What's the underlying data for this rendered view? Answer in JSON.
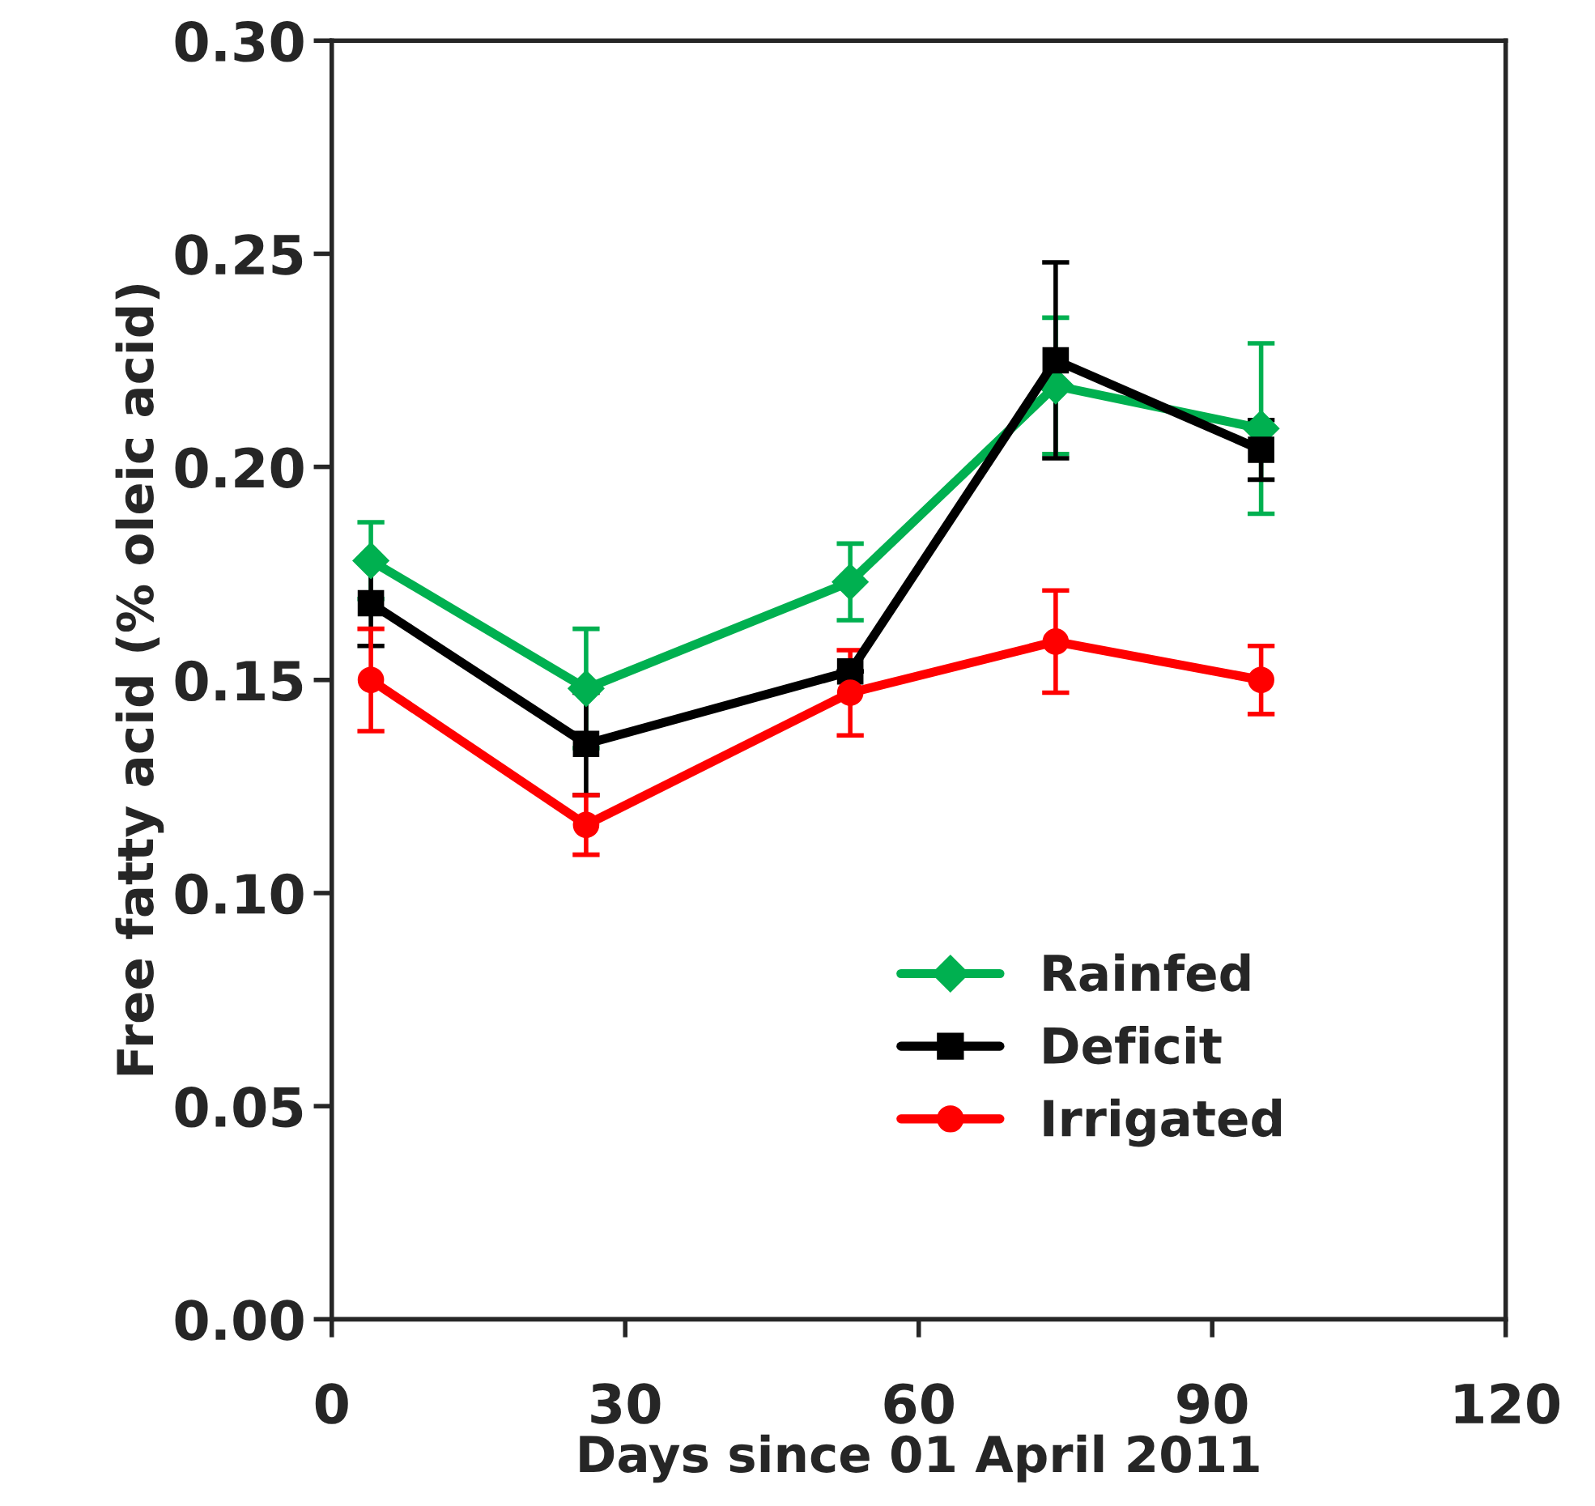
{
  "chart_data": {
    "type": "line",
    "xlabel": "Days since 01 April 2011",
    "ylabel": "Free fatty acid (% oleic acid)",
    "x": [
      4,
      26,
      53,
      74,
      95
    ],
    "series": [
      {
        "name": "Rainfed",
        "color": "#00b050",
        "marker": "diamond",
        "values": [
          0.178,
          0.148,
          0.173,
          0.219,
          0.209
        ],
        "errors": [
          0.009,
          0.014,
          0.009,
          0.016,
          0.02
        ]
      },
      {
        "name": "Deficit",
        "color": "#000000",
        "marker": "square",
        "values": [
          0.168,
          0.135,
          0.152,
          0.225,
          0.204
        ],
        "errors": [
          0.01,
          0.012,
          null,
          0.023,
          0.007
        ]
      },
      {
        "name": "Irrigated",
        "color": "#ff0000",
        "marker": "circle",
        "values": [
          0.15,
          0.116,
          0.147,
          0.159,
          0.15
        ],
        "errors": [
          0.012,
          0.007,
          0.01,
          0.012,
          0.008
        ]
      }
    ],
    "xlim": [
      0,
      120
    ],
    "xticks": [
      0,
      30,
      60,
      90,
      120
    ],
    "ylim": [
      0,
      0.3
    ],
    "yticks": [
      {
        "value": 0,
        "label": "0.00"
      },
      {
        "value": 0.05,
        "label": "0.05"
      },
      {
        "value": 0.1,
        "label": "0.10"
      },
      {
        "value": 0.15,
        "label": "0.15"
      },
      {
        "value": 0.2,
        "label": "0.20"
      },
      {
        "value": 0.25,
        "label": "0.25"
      },
      {
        "value": 0.3,
        "label": "0.30"
      }
    ],
    "grid": false,
    "legend": "lower right"
  }
}
